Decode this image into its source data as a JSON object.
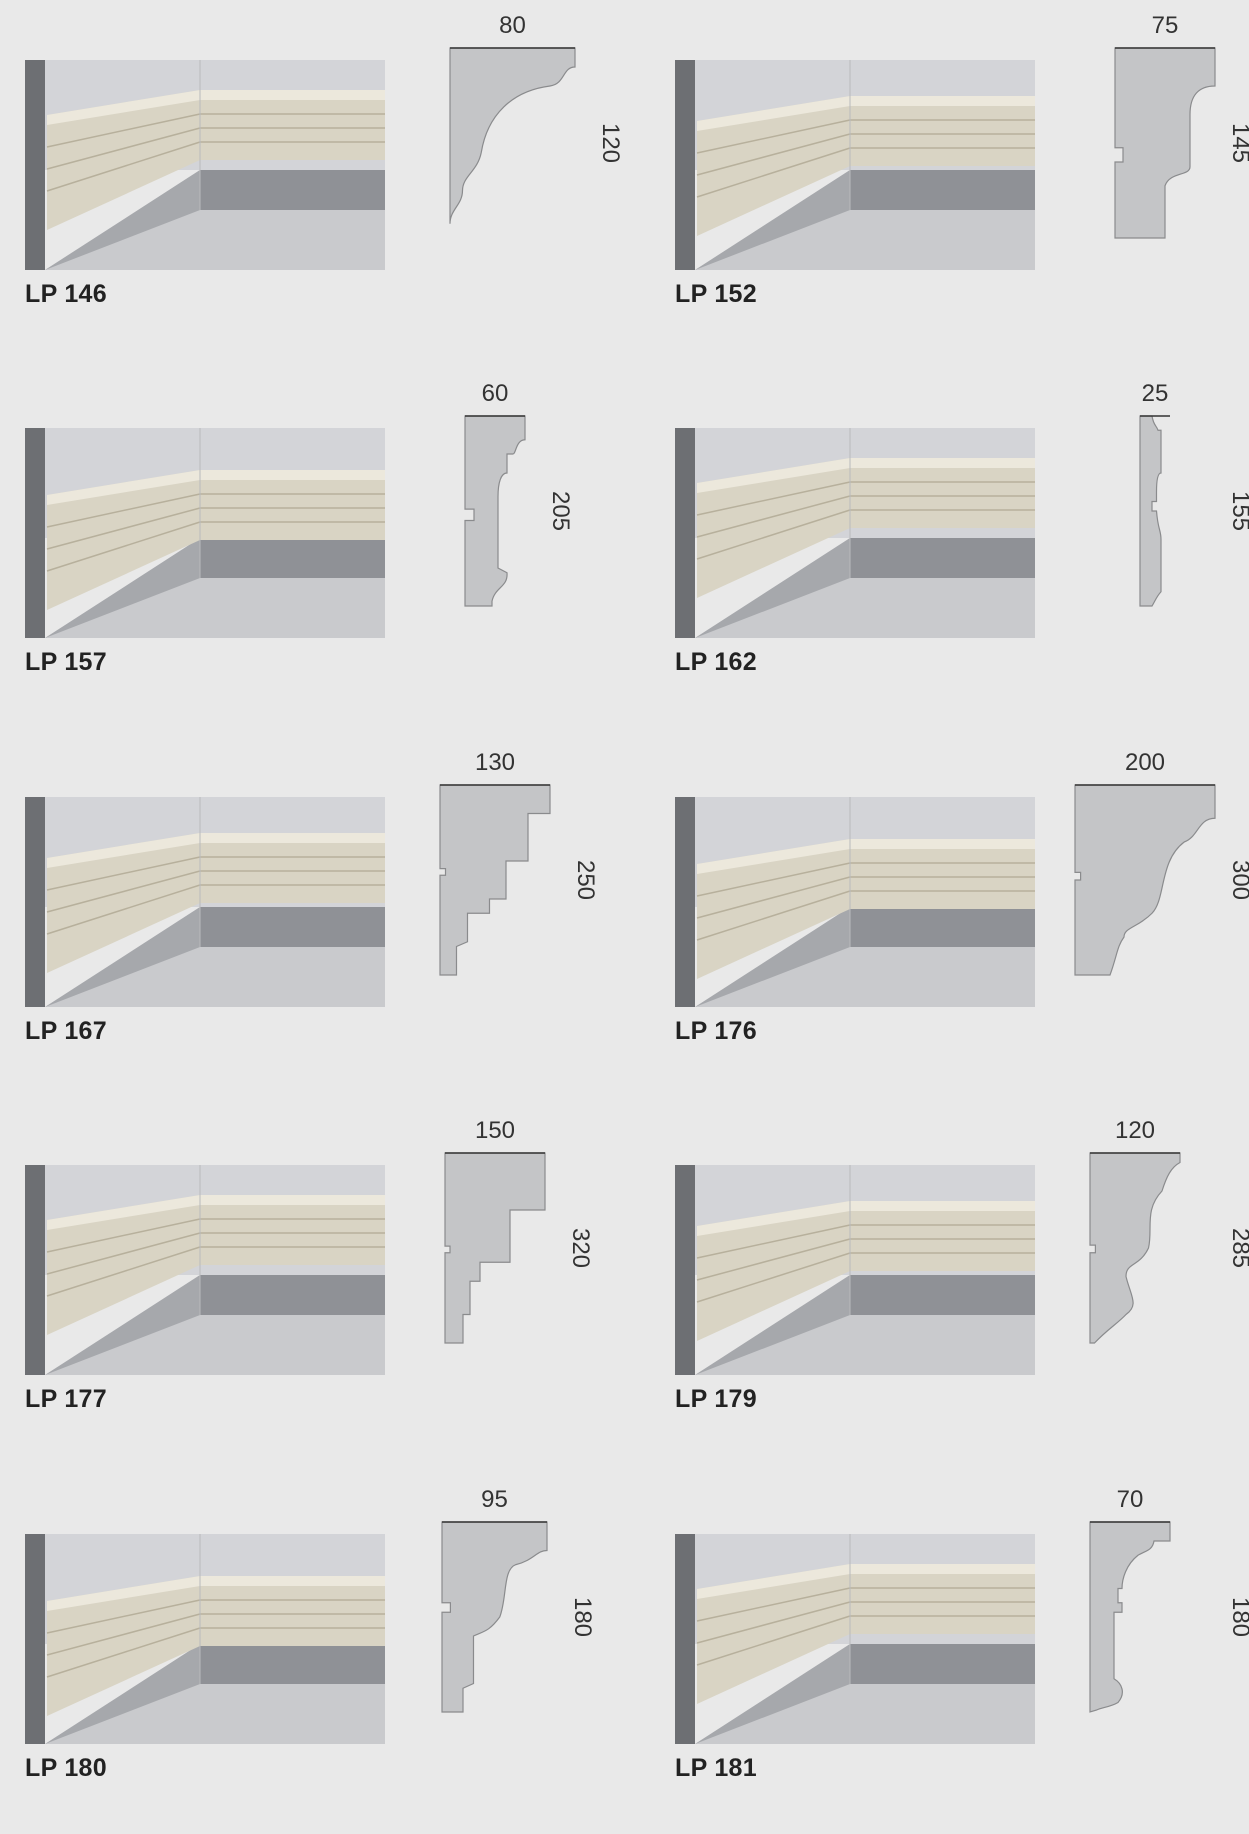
{
  "items": [
    {
      "code": "LP 146",
      "width": "80",
      "height": "120"
    },
    {
      "code": "LP 152",
      "width": "75",
      "height": "145"
    },
    {
      "code": "LP 157",
      "width": "60",
      "height": "205"
    },
    {
      "code": "LP 162",
      "width": "25",
      "height": "155"
    },
    {
      "code": "LP 167",
      "width": "130",
      "height": "250"
    },
    {
      "code": "LP 176",
      "width": "200",
      "height": "300"
    },
    {
      "code": "LP 177",
      "width": "150",
      "height": "320"
    },
    {
      "code": "LP 179",
      "width": "120",
      "height": "285"
    },
    {
      "code": "LP 180",
      "width": "95",
      "height": "180"
    },
    {
      "code": "LP 181",
      "width": "70",
      "height": "180"
    }
  ],
  "colors": {
    "background": "#e9e9e9",
    "profile_fill": "#c4c5c7",
    "profile_stroke": "#8a8b8d",
    "molding": "#d9d4c4",
    "wall": "#d3d4d8",
    "floor": "#8f9196"
  }
}
